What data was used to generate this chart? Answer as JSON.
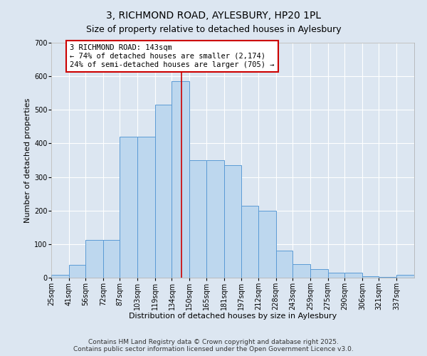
{
  "title": "3, RICHMOND ROAD, AYLESBURY, HP20 1PL",
  "subtitle": "Size of property relative to detached houses in Aylesbury",
  "xlabel": "Distribution of detached houses by size in Aylesbury",
  "ylabel": "Number of detached properties",
  "categories": [
    "25sqm",
    "41sqm",
    "56sqm",
    "72sqm",
    "87sqm",
    "103sqm",
    "119sqm",
    "134sqm",
    "150sqm",
    "165sqm",
    "181sqm",
    "197sqm",
    "212sqm",
    "228sqm",
    "243sqm",
    "259sqm",
    "275sqm",
    "290sqm",
    "306sqm",
    "321sqm",
    "337sqm"
  ],
  "bins": [
    25,
    41,
    56,
    72,
    87,
    103,
    119,
    134,
    150,
    165,
    181,
    197,
    212,
    228,
    243,
    259,
    275,
    290,
    306,
    321,
    337,
    353
  ],
  "bar_heights": [
    8,
    38,
    113,
    113,
    420,
    420,
    515,
    585,
    350,
    350,
    335,
    215,
    200,
    80,
    40,
    25,
    15,
    15,
    5,
    3,
    8
  ],
  "bar_color": "#bdd7ee",
  "bar_edge_color": "#5b9bd5",
  "vline_x": 143,
  "vline_color": "#cc0000",
  "annotation_text": "3 RICHMOND ROAD: 143sqm\n← 74% of detached houses are smaller (2,174)\n24% of semi-detached houses are larger (705) →",
  "annotation_box_color": "#cc0000",
  "ylim": [
    0,
    700
  ],
  "yticks": [
    0,
    100,
    200,
    300,
    400,
    500,
    600,
    700
  ],
  "bg_color": "#dce6f1",
  "plot_bg_color": "#dce6f1",
  "grid_color": "#ffffff",
  "footer_text": "Contains HM Land Registry data © Crown copyright and database right 2025.\nContains public sector information licensed under the Open Government Licence v3.0.",
  "title_fontsize": 10,
  "subtitle_fontsize": 9,
  "xlabel_fontsize": 8,
  "ylabel_fontsize": 8,
  "tick_fontsize": 7,
  "annotation_fontsize": 7.5,
  "footer_fontsize": 6.5
}
